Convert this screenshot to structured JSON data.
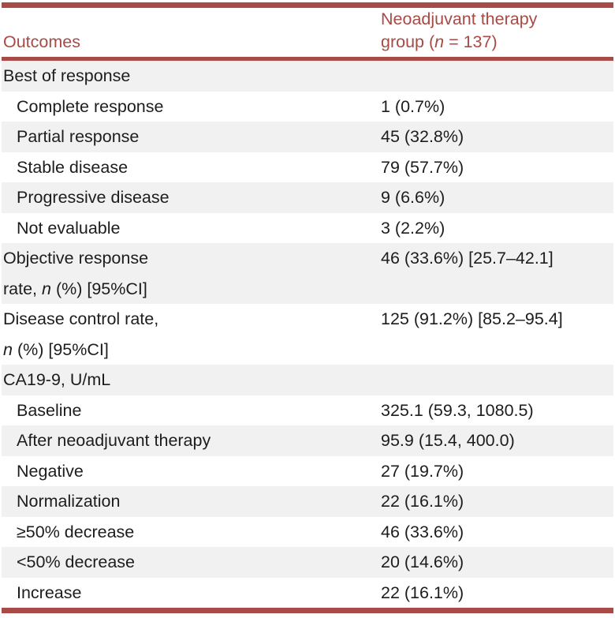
{
  "accent_color": "#a84a45",
  "stripe_color": "#f1f1f1",
  "table": {
    "header": {
      "col1": "Outcomes",
      "col2_segments": [
        {
          "t": "Neoadjuvant therapy\ngroup ("
        },
        {
          "t": "n",
          "i": true
        },
        {
          "t": " = 137)"
        }
      ]
    },
    "rows": [
      {
        "label": [
          {
            "t": "Best of response"
          }
        ],
        "value": "",
        "indent": false,
        "lines": 1
      },
      {
        "label": [
          {
            "t": "Complete response"
          }
        ],
        "value": "1 (0.7%)",
        "indent": true,
        "lines": 1
      },
      {
        "label": [
          {
            "t": "Partial response"
          }
        ],
        "value": "45 (32.8%)",
        "indent": true,
        "lines": 1
      },
      {
        "label": [
          {
            "t": "Stable disease"
          }
        ],
        "value": "79 (57.7%)",
        "indent": true,
        "lines": 1
      },
      {
        "label": [
          {
            "t": "Progressive disease"
          }
        ],
        "value": "9 (6.6%)",
        "indent": true,
        "lines": 1
      },
      {
        "label": [
          {
            "t": "Not evaluable"
          }
        ],
        "value": "3 (2.2%)",
        "indent": true,
        "lines": 1
      },
      {
        "label": [
          {
            "t": "Objective response\nrate, "
          },
          {
            "t": "n",
            "i": true
          },
          {
            "t": " (%) [95%CI]"
          }
        ],
        "value": "46 (33.6%) [25.7–42.1]",
        "indent": false,
        "lines": 2
      },
      {
        "label": [
          {
            "t": "Disease control rate,\n"
          },
          {
            "t": "n",
            "i": true
          },
          {
            "t": " (%) [95%CI]"
          }
        ],
        "value": "125 (91.2%) [85.2–95.4]",
        "indent": false,
        "lines": 2
      },
      {
        "label": [
          {
            "t": "CA19-9, U/mL"
          }
        ],
        "value": "",
        "indent": false,
        "lines": 1
      },
      {
        "label": [
          {
            "t": "Baseline"
          }
        ],
        "value": "325.1 (59.3, 1080.5)",
        "indent": true,
        "lines": 1
      },
      {
        "label": [
          {
            "t": "After neoadjuvant therapy"
          }
        ],
        "value": "95.9 (15.4, 400.0)",
        "indent": true,
        "lines": 1
      },
      {
        "label": [
          {
            "t": "Negative"
          }
        ],
        "value": "27 (19.7%)",
        "indent": true,
        "lines": 1
      },
      {
        "label": [
          {
            "t": "Normalization"
          }
        ],
        "value": "22 (16.1%)",
        "indent": true,
        "lines": 1
      },
      {
        "label": [
          {
            "t": "≥50% decrease"
          }
        ],
        "value": "46 (33.6%)",
        "indent": true,
        "lines": 1
      },
      {
        "label": [
          {
            "t": "<50% decrease"
          }
        ],
        "value": "20 (14.6%)",
        "indent": true,
        "lines": 1
      },
      {
        "label": [
          {
            "t": "Increase"
          }
        ],
        "value": "22 (16.1%)",
        "indent": true,
        "lines": 1
      }
    ]
  }
}
